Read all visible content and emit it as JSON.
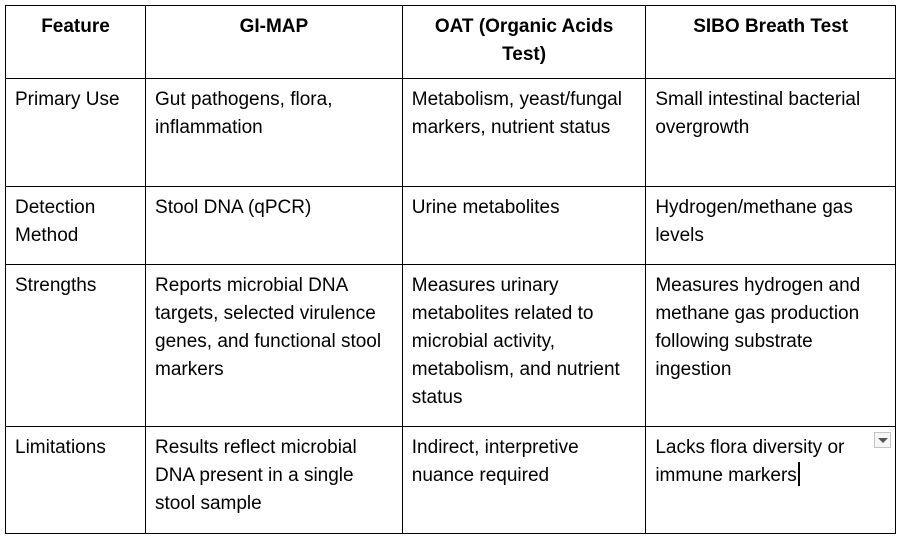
{
  "table": {
    "headers": [
      "Feature",
      "GI-MAP",
      "OAT (Organic Acids Test)",
      "SIBO Breath Test"
    ],
    "rows": [
      {
        "feature": "Primary Use",
        "gi_map": "Gut pathogens, flora, inflammation",
        "oat": "Metabolism, yeast/fungal markers, nutrient status",
        "sibo": "Small intestinal bacterial overgrowth"
      },
      {
        "feature": "Detection Method",
        "gi_map": "Stool DNA (qPCR)",
        "oat": "Urine metabolites",
        "sibo": "Hydrogen/methane gas levels"
      },
      {
        "feature": "Strengths",
        "gi_map": "Reports microbial DNA targets, selected virulence genes, and functional stool markers",
        "oat": "Measures urinary metabolites related to microbial activity, metabolism, and nutrient status",
        "sibo": "Measures hydrogen and methane gas production following substrate ingestion"
      },
      {
        "feature": "Limitations",
        "gi_map": "Results reflect microbial DNA present in a single stool sample",
        "oat": "Indirect, interpretive nuance required",
        "sibo": "Lacks flora diversity or immune markers"
      }
    ]
  },
  "icons": {
    "cell_dropdown": "dropdown-arrow-icon",
    "text_cursor": "text-caret-icon"
  }
}
